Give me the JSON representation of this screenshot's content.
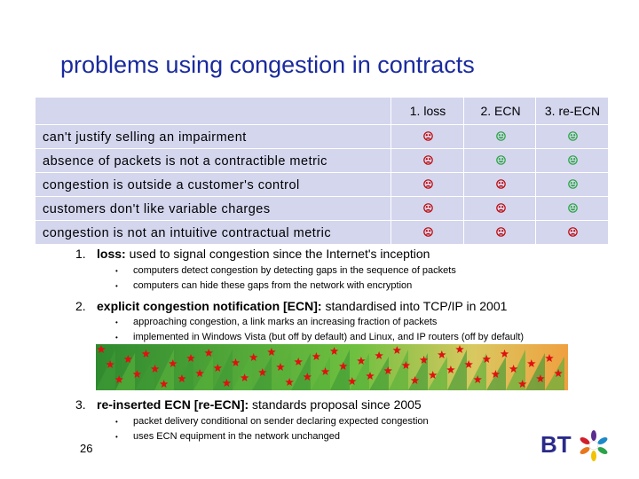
{
  "title": "problems using congestion in contracts",
  "table": {
    "columns": [
      "1. loss",
      "2. ECN",
      "3. re-ECN"
    ],
    "rows": [
      {
        "label": "can't justify selling an impairment",
        "marks": [
          "bad",
          "good",
          "good"
        ]
      },
      {
        "label": "absence of packets is not a contractible metric",
        "marks": [
          "bad",
          "good",
          "good"
        ]
      },
      {
        "label": "congestion is outside a customer's control",
        "marks": [
          "bad",
          "bad",
          "good"
        ]
      },
      {
        "label": "customers don't like variable charges",
        "marks": [
          "bad",
          "bad",
          "good"
        ]
      },
      {
        "label": "congestion is not an intuitive contractual metric",
        "marks": [
          "bad",
          "bad",
          "bad"
        ]
      }
    ]
  },
  "items": [
    {
      "num": "1.",
      "head": "loss:",
      "text": " used to signal congestion since the Internet's inception",
      "bullets": [
        "computers detect congestion by detecting gaps in the sequence of packets",
        "computers can hide these gaps from the network with encryption"
      ]
    },
    {
      "num": "2.",
      "head": "explicit congestion notification [ECN]:",
      "text": " standardised into TCP/IP in 2001",
      "bullets": [
        "approaching congestion, a link marks an increasing fraction of packets",
        "implemented in Windows Vista (but off by default) and Linux, and IP routers (off by default)"
      ]
    },
    {
      "num": "3.",
      "head": "re-inserted ECN [re-ECN]:",
      "text": " standards proposal since 2005",
      "bullets": [
        "packet delivery conditional on sender declaring expected congestion",
        "uses ECN equipment in the network unchanged"
      ]
    }
  ],
  "bullet_char": "•",
  "slide_number": "26",
  "colors": {
    "title": "#1a2a9e",
    "table_bg": "#d4d6ee",
    "bad": "#c00000",
    "good": "#22a33a",
    "star": "#e01010"
  }
}
